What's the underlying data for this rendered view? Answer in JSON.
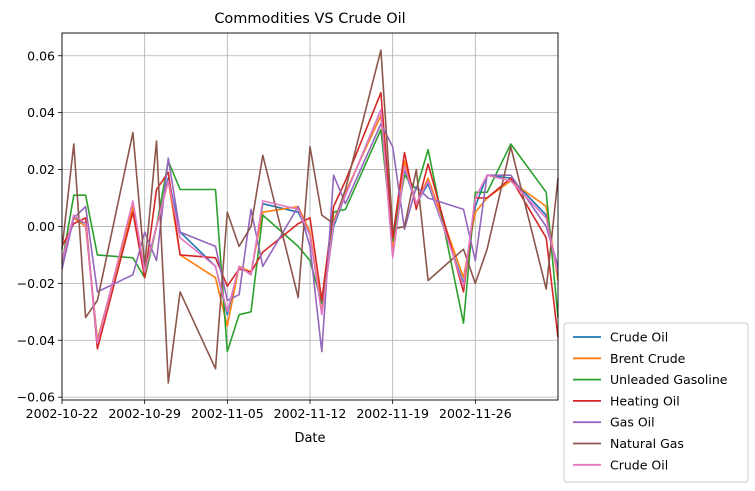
{
  "chart_data": {
    "type": "line",
    "title": "Commodities VS Crude Oil",
    "xlabel": "Date",
    "ylabel": "",
    "grid": true,
    "legend_position": "lower-right-outside",
    "ylim": [
      -0.061,
      0.068
    ],
    "xlim": [
      "2002-10-22",
      "2002-12-03"
    ],
    "yticks": [
      -0.06,
      -0.04,
      -0.02,
      0.0,
      0.02,
      0.04,
      0.06
    ],
    "ytick_labels": [
      "−0.06",
      "−0.04",
      "−0.02",
      "0.00",
      "0.02",
      "0.04",
      "0.06"
    ],
    "xticks": [
      "2002-10-22",
      "2002-10-29",
      "2002-11-05",
      "2002-11-12",
      "2002-11-19",
      "2002-11-26"
    ],
    "x": [
      "2002-10-22",
      "2002-10-23",
      "2002-10-24",
      "2002-10-25",
      "2002-10-28",
      "2002-10-29",
      "2002-10-30",
      "2002-10-31",
      "2002-11-01",
      "2002-11-04",
      "2002-11-05",
      "2002-11-06",
      "2002-11-07",
      "2002-11-08",
      "2002-11-11",
      "2002-11-12",
      "2002-11-13",
      "2002-11-14",
      "2002-11-15",
      "2002-11-18",
      "2002-11-19",
      "2002-11-20",
      "2002-11-21",
      "2002-11-22",
      "2002-11-25",
      "2002-11-26",
      "2002-11-27",
      "2002-11-29",
      "2002-12-02",
      "2002-12-03"
    ],
    "series": [
      {
        "name": "Crude Oil",
        "color": "#1f77b4",
        "values": [
          -0.012,
          0.003,
          0.001,
          -0.04,
          0.007,
          -0.016,
          0.0,
          0.017,
          -0.002,
          -0.014,
          -0.031,
          -0.014,
          -0.017,
          0.008,
          0.005,
          -0.003,
          -0.03,
          0.0,
          0.011,
          0.041,
          -0.01,
          0.02,
          0.008,
          0.015,
          -0.02,
          0.007,
          0.018,
          0.017,
          0.004,
          -0.017
        ]
      },
      {
        "name": "Brent Crude",
        "color": "#ff7f0e",
        "values": [
          -0.012,
          0.003,
          0.0,
          -0.04,
          0.007,
          -0.018,
          0.0,
          0.016,
          -0.01,
          -0.018,
          -0.035,
          -0.014,
          -0.016,
          0.005,
          0.007,
          -0.002,
          -0.03,
          0.002,
          0.012,
          0.039,
          -0.008,
          0.023,
          0.008,
          0.017,
          -0.018,
          0.005,
          0.01,
          0.016,
          0.007,
          -0.019
        ]
      },
      {
        "name": "Unleaded Gasoline",
        "color": "#2ca02c",
        "values": [
          -0.013,
          0.011,
          0.011,
          -0.01,
          -0.011,
          -0.018,
          0.0,
          0.023,
          0.013,
          0.013,
          -0.044,
          -0.031,
          -0.03,
          0.004,
          -0.007,
          -0.012,
          -0.027,
          0.005,
          0.006,
          0.034,
          -0.005,
          0.018,
          0.013,
          0.027,
          -0.034,
          0.012,
          0.012,
          0.029,
          0.012,
          -0.032
        ]
      },
      {
        "name": "Heating Oil",
        "color": "#d62728",
        "values": [
          -0.007,
          0.001,
          0.003,
          -0.043,
          0.005,
          -0.018,
          0.013,
          0.019,
          -0.01,
          -0.011,
          -0.021,
          -0.015,
          -0.016,
          -0.009,
          0.001,
          0.003,
          -0.026,
          0.007,
          0.016,
          0.047,
          -0.004,
          0.026,
          0.006,
          0.022,
          -0.023,
          0.01,
          0.01,
          0.017,
          -0.004,
          -0.039
        ]
      },
      {
        "name": "Gas Oil",
        "color": "#9467bd",
        "values": [
          -0.015,
          0.003,
          0.007,
          -0.023,
          -0.017,
          -0.002,
          -0.012,
          0.024,
          -0.002,
          -0.007,
          -0.026,
          -0.024,
          0.006,
          -0.014,
          0.007,
          -0.007,
          -0.044,
          0.018,
          0.008,
          0.036,
          0.028,
          -0.001,
          0.014,
          0.01,
          0.006,
          -0.012,
          0.018,
          0.018,
          0.0,
          -0.014
        ]
      },
      {
        "name": "Natural Gas",
        "color": "#8c564b",
        "values": [
          -0.008,
          0.029,
          -0.032,
          -0.026,
          0.033,
          -0.014,
          0.03,
          -0.055,
          -0.023,
          -0.05,
          0.005,
          -0.007,
          0.0,
          0.025,
          -0.025,
          0.028,
          0.004,
          0.001,
          0.013,
          0.062,
          -0.001,
          0.0,
          0.02,
          -0.019,
          -0.008,
          -0.02,
          -0.008,
          0.028,
          -0.022,
          0.017
        ]
      },
      {
        "name": "Crude Oil",
        "color": "#e377c2",
        "values": [
          -0.012,
          0.004,
          0.001,
          -0.041,
          0.009,
          -0.016,
          0.0,
          0.016,
          -0.004,
          -0.014,
          -0.03,
          -0.014,
          -0.017,
          0.009,
          0.006,
          -0.003,
          -0.031,
          0.001,
          0.011,
          0.041,
          -0.011,
          0.021,
          0.008,
          0.016,
          -0.021,
          0.01,
          0.018,
          0.016,
          0.003,
          -0.017
        ]
      }
    ]
  }
}
